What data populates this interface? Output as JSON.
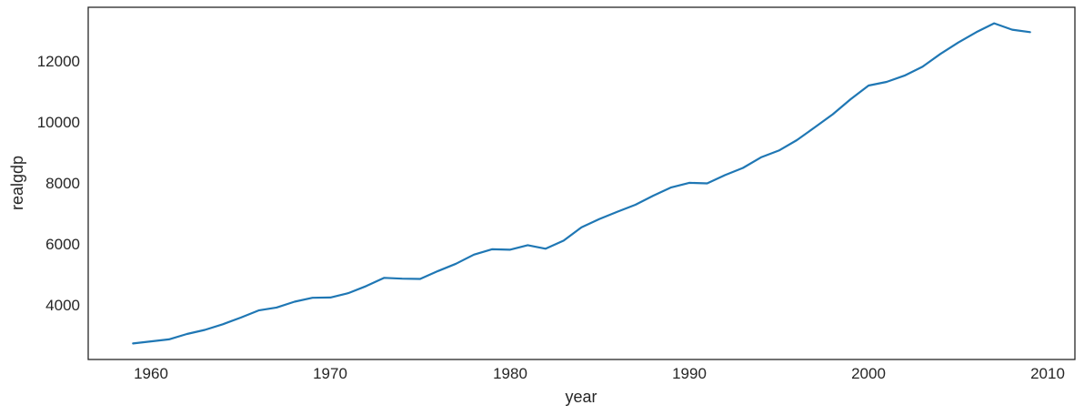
{
  "figure": {
    "background": "#ffffff"
  },
  "chart_data": {
    "type": "line",
    "title": "",
    "xlabel": "year",
    "ylabel": "realgdp",
    "legend": null,
    "grid": false,
    "line_color": "#1f77b4",
    "axis_color": "#262626",
    "text_color": "#262626",
    "xlim": [
      1956.5,
      2011.5
    ],
    "ylim": [
      2237,
      13795
    ],
    "xticks": [
      "1960",
      "1970",
      "1980",
      "1990",
      "2000",
      "2010"
    ],
    "xtick_values": [
      1960,
      1970,
      1980,
      1990,
      2000,
      2010
    ],
    "yticks": [
      "4000",
      "6000",
      "8000",
      "10000",
      "12000"
    ],
    "ytick_values": [
      4000,
      6000,
      8000,
      10000,
      12000
    ],
    "series": [
      {
        "name": "realgdp",
        "x": [
          1959,
          1960,
          1961,
          1962,
          1963,
          1964,
          1965,
          1966,
          1967,
          1968,
          1969,
          1970,
          1971,
          1972,
          1973,
          1974,
          1975,
          1976,
          1977,
          1978,
          1979,
          1980,
          1981,
          1982,
          1983,
          1984,
          1985,
          1986,
          1987,
          1988,
          1989,
          1990,
          1991,
          1992,
          1993,
          1994,
          1995,
          1996,
          1997,
          1998,
          1999,
          2000,
          2001,
          2002,
          2003,
          2004,
          2005,
          2006,
          2007,
          2008,
          2009
        ],
        "y": [
          2762.4,
          2830.9,
          2896.9,
          3072.4,
          3206.7,
          3392.3,
          3610.1,
          3845.3,
          3942.5,
          4133.4,
          4261.8,
          4269.9,
          4413.3,
          4647.7,
          4917.0,
          4889.9,
          4879.5,
          5141.3,
          5377.7,
          5677.6,
          5855.0,
          5839.0,
          5987.2,
          5870.9,
          6136.2,
          6577.1,
          6849.3,
          7086.5,
          7313.3,
          7613.9,
          7885.9,
          8033.9,
          8015.1,
          8287.1,
          8523.4,
          8870.7,
          9093.7,
          9433.9,
          9854.3,
          10283.5,
          10779.8,
          11226.0,
          11347.2,
          11553.0,
          11840.7,
          12263.8,
          12638.4,
          12976.3,
          13270.0,
          13060.0,
          12980.0
        ]
      }
    ]
  }
}
